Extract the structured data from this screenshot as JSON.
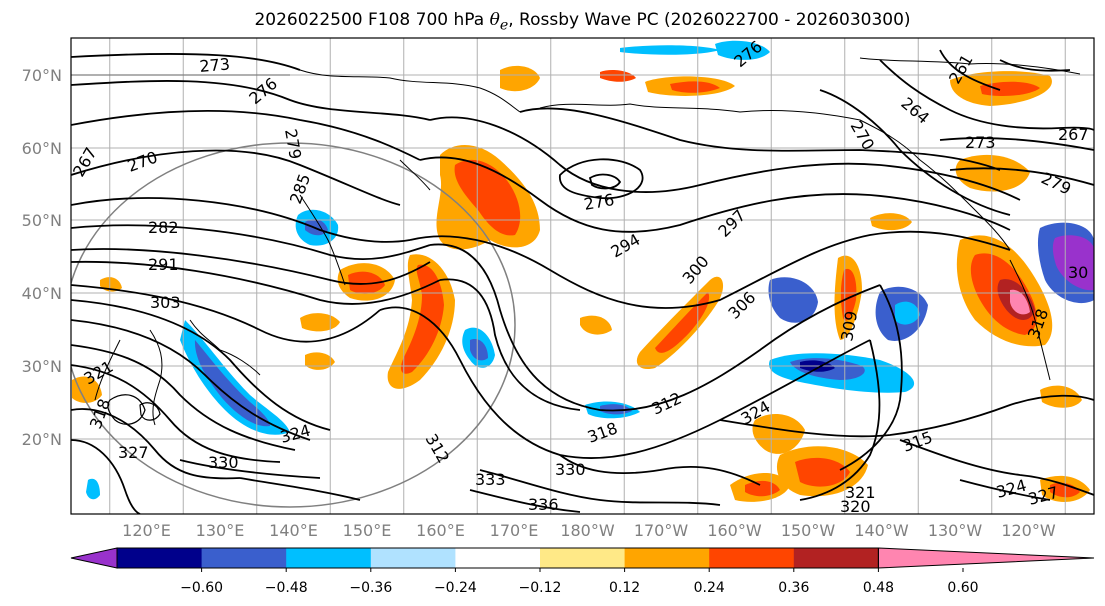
{
  "title_prefix": "2026022500 F108 700 hPa ",
  "title_symbol": "θ",
  "title_symbol_sub": "e",
  "title_suffix": ", Rossby Wave PC (2026022700 - 2026030300)",
  "lat_labels": [
    "70°N",
    "60°N",
    "50°N",
    "40°N",
    "30°N",
    "20°N"
  ],
  "lon_labels": [
    "120°E",
    "130°E",
    "140°E",
    "150°E",
    "160°E",
    "170°E",
    "180°W",
    "170°W",
    "160°W",
    "150°W",
    "140°W",
    "130°W",
    "120°W"
  ],
  "colorbar": {
    "ticks": [
      "−0.60",
      "−0.48",
      "−0.36",
      "−0.24",
      "−0.12",
      "0.12",
      "0.24",
      "0.36",
      "0.48",
      "0.60"
    ],
    "colors": [
      "#9932cc",
      "#00008b",
      "#3a5fcd",
      "#00bfff",
      "#b0e2ff",
      "#ffffff",
      "#ffe987",
      "#ffa500",
      "#ff4500",
      "#b22222",
      "#ff85b0"
    ]
  },
  "contour_labels": [
    "273",
    "276",
    "279",
    "267",
    "270",
    "285",
    "282",
    "291",
    "303",
    "321",
    "324",
    "327",
    "318",
    "330",
    "333",
    "336",
    "330",
    "318",
    "312",
    "324",
    "315",
    "309",
    "306",
    "300",
    "297",
    "294",
    "276",
    "270",
    "264",
    "261",
    "276",
    "273",
    "267",
    "279",
    "30",
    "327",
    "324",
    "320",
    "321",
    "318",
    "312"
  ]
}
